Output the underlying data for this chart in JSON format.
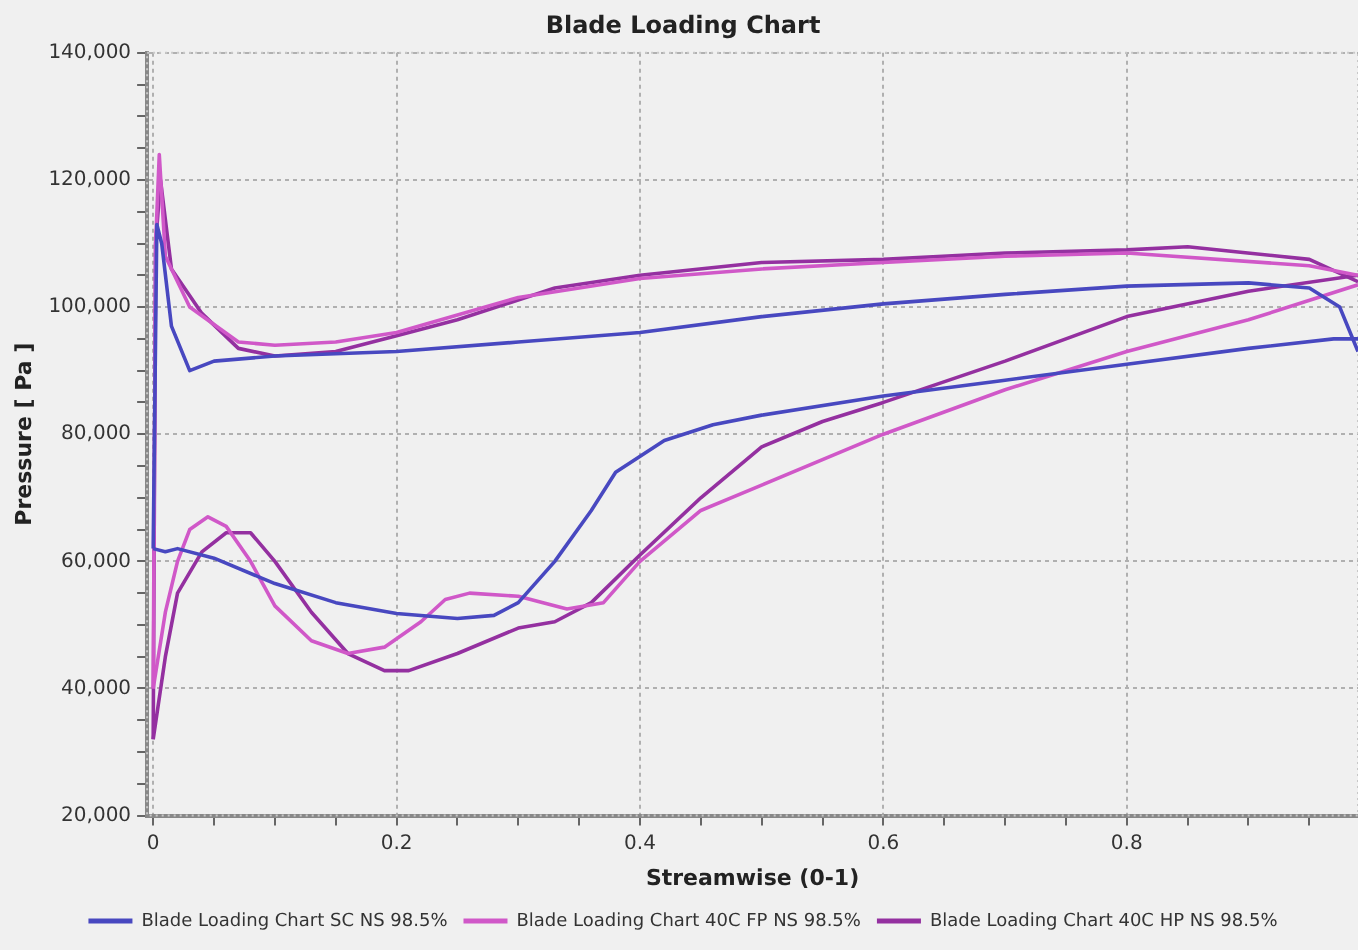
{
  "chart_data": {
    "type": "line",
    "title": "Blade Loading Chart",
    "xlabel": "Streamwise (0-1)",
    "ylabel": "Pressure [ Pa ]",
    "xlim": [
      -0.005,
      0.99
    ],
    "ylim": [
      20000,
      140000
    ],
    "xticks": [
      0,
      {
        "value": 0.05,
        "label": null
      },
      {
        "value": 0.1,
        "label": null
      },
      {
        "value": 0.15,
        "label": null
      },
      0.2,
      {
        "value": 0.25,
        "label": null
      },
      {
        "value": 0.3,
        "label": null
      },
      {
        "value": 0.35,
        "label": null
      },
      0.4,
      {
        "value": 0.45,
        "label": null
      },
      {
        "value": 0.5,
        "label": null
      },
      {
        "value": 0.55,
        "label": null
      },
      0.6,
      {
        "value": 0.65,
        "label": null
      },
      {
        "value": 0.7,
        "label": null
      },
      {
        "value": 0.75,
        "label": null
      },
      0.8,
      {
        "value": 0.85,
        "label": null
      },
      {
        "value": 0.9,
        "label": null
      },
      {
        "value": 0.95,
        "label": null
      }
    ],
    "yticks": [
      {
        "value": 20000,
        "label": "20,000"
      },
      {
        "value": 25000,
        "label": null
      },
      {
        "value": 30000,
        "label": null
      },
      {
        "value": 35000,
        "label": null
      },
      {
        "value": 40000,
        "label": "40,000"
      },
      {
        "value": 45000,
        "label": null
      },
      {
        "value": 50000,
        "label": null
      },
      {
        "value": 55000,
        "label": null
      },
      {
        "value": 60000,
        "label": "60,000"
      },
      {
        "value": 65000,
        "label": null
      },
      {
        "value": 70000,
        "label": null
      },
      {
        "value": 75000,
        "label": null
      },
      {
        "value": 80000,
        "label": "80,000"
      },
      {
        "value": 85000,
        "label": null
      },
      {
        "value": 90000,
        "label": null
      },
      {
        "value": 95000,
        "label": null
      },
      {
        "value": 100000,
        "label": "100,000"
      },
      {
        "value": 105000,
        "label": null
      },
      {
        "value": 110000,
        "label": null
      },
      {
        "value": 115000,
        "label": null
      },
      {
        "value": 120000,
        "label": "120,000"
      },
      {
        "value": 125000,
        "label": null
      },
      {
        "value": 130000,
        "label": null
      },
      {
        "value": 135000,
        "label": null
      },
      {
        "value": 140000,
        "label": "140,000"
      }
    ],
    "grid": true,
    "legend": "bottom",
    "marker": "none",
    "line_style": "solid",
    "series": [
      {
        "name": "Blade Loading Chart SC NS 98.5%",
        "color": "#4848c0",
        "x": [
          0,
          0.01,
          0.02,
          0.05,
          0.1,
          0.15,
          0.2,
          0.25,
          0.28,
          0.3,
          0.33,
          0.36,
          0.38,
          0.42,
          0.46,
          0.5,
          0.6,
          0.7,
          0.8,
          0.9,
          0.97,
          0.99
        ],
        "values": [
          62000,
          61500,
          62000,
          60500,
          56500,
          53500,
          51800,
          51000,
          51500,
          53500,
          60000,
          68000,
          74000,
          79000,
          81500,
          83000,
          86000,
          88500,
          91000,
          93500,
          95000,
          95000
        ]
      },
      {
        "color": "#4848c0",
        "x": [
          0,
          0.003,
          0.007,
          0.015,
          0.03,
          0.05,
          0.1,
          0.2,
          0.3,
          0.4,
          0.5,
          0.6,
          0.7,
          0.8,
          0.9,
          0.95,
          0.975,
          0.99
        ],
        "values": [
          62000,
          113000,
          110000,
          97000,
          90000,
          91500,
          92300,
          93000,
          94500,
          96000,
          98500,
          100500,
          102000,
          103300,
          103800,
          103000,
          100000,
          93000
        ]
      },
      {
        "name": "Blade Loading Chart 40C FP NS 98.5%",
        "color": "#d058c8",
        "x": [
          0,
          0.01,
          0.02,
          0.03,
          0.045,
          0.06,
          0.08,
          0.1,
          0.13,
          0.16,
          0.19,
          0.22,
          0.24,
          0.26,
          0.3,
          0.34,
          0.37,
          0.4,
          0.45,
          0.5,
          0.6,
          0.7,
          0.8,
          0.9,
          0.99
        ],
        "values": [
          40000,
          52000,
          60000,
          65000,
          67000,
          65500,
          60000,
          53000,
          47500,
          45500,
          46500,
          50500,
          54000,
          55000,
          54500,
          52500,
          53500,
          60000,
          68000,
          72000,
          80000,
          87000,
          93000,
          98000,
          103500
        ]
      },
      {
        "color": "#d058c8",
        "x": [
          0,
          0.002,
          0.005,
          0.01,
          0.03,
          0.07,
          0.1,
          0.15,
          0.2,
          0.3,
          0.4,
          0.5,
          0.6,
          0.7,
          0.8,
          0.95,
          0.99
        ],
        "values": [
          40000,
          110000,
          124000,
          108000,
          100000,
          94500,
          94000,
          94500,
          96000,
          101500,
          104500,
          106000,
          107000,
          108000,
          108500,
          106500,
          105000
        ]
      },
      {
        "name": "Blade Loading Chart 40C HP NS 98.5%",
        "color": "#9430a0",
        "x": [
          0,
          0.01,
          0.02,
          0.04,
          0.06,
          0.08,
          0.1,
          0.13,
          0.16,
          0.19,
          0.21,
          0.25,
          0.3,
          0.33,
          0.36,
          0.4,
          0.45,
          0.5,
          0.55,
          0.6,
          0.7,
          0.8,
          0.9,
          0.99
        ],
        "values": [
          32000,
          45000,
          55000,
          61500,
          64500,
          64500,
          60000,
          52000,
          45500,
          42800,
          42800,
          45500,
          49500,
          50500,
          53500,
          61000,
          70000,
          78000,
          82000,
          85000,
          91500,
          98500,
          102500,
          105000
        ]
      },
      {
        "color": "#9430a0",
        "x": [
          0,
          0.002,
          0.006,
          0.015,
          0.04,
          0.07,
          0.1,
          0.15,
          0.2,
          0.25,
          0.33,
          0.4,
          0.5,
          0.6,
          0.7,
          0.8,
          0.85,
          0.95,
          0.99
        ],
        "values": [
          32000,
          110000,
          120000,
          106000,
          99000,
          93500,
          92300,
          93000,
          95500,
          98000,
          103000,
          105000,
          107000,
          107500,
          108500,
          109000,
          109500,
          107500,
          104000
        ]
      }
    ]
  }
}
